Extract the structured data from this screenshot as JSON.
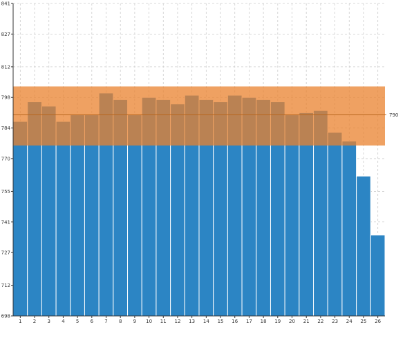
{
  "chart_data": {
    "type": "bar",
    "categories": [
      "1",
      "2",
      "3",
      "4",
      "5",
      "6",
      "7",
      "8",
      "9",
      "10",
      "11",
      "12",
      "13",
      "14",
      "15",
      "16",
      "17",
      "18",
      "19",
      "20",
      "21",
      "22",
      "23",
      "24",
      "25",
      "26"
    ],
    "series": [
      {
        "values": [
          787,
          796,
          794,
          787,
          790,
          790,
          800,
          797,
          790,
          798,
          797,
          795,
          799,
          797,
          796,
          799,
          798,
          797,
          796,
          790,
          791,
          792,
          782,
          778,
          762,
          735
        ]
      }
    ],
    "ylim": [
      698,
      841
    ],
    "yticks": [
      698,
      712,
      727,
      741,
      755,
      770,
      784,
      798,
      812,
      827,
      841
    ],
    "band": {
      "from": 776,
      "to": 803
    },
    "reference_line": {
      "value": 790,
      "label": "790"
    },
    "grid": true,
    "colors": {
      "bar": "#2c85c4",
      "bar_stroke": "#ffffff",
      "band": "#e9812d",
      "band_opacity": 0.75,
      "reference_line": "#b8651c",
      "axis": "#333333"
    }
  }
}
